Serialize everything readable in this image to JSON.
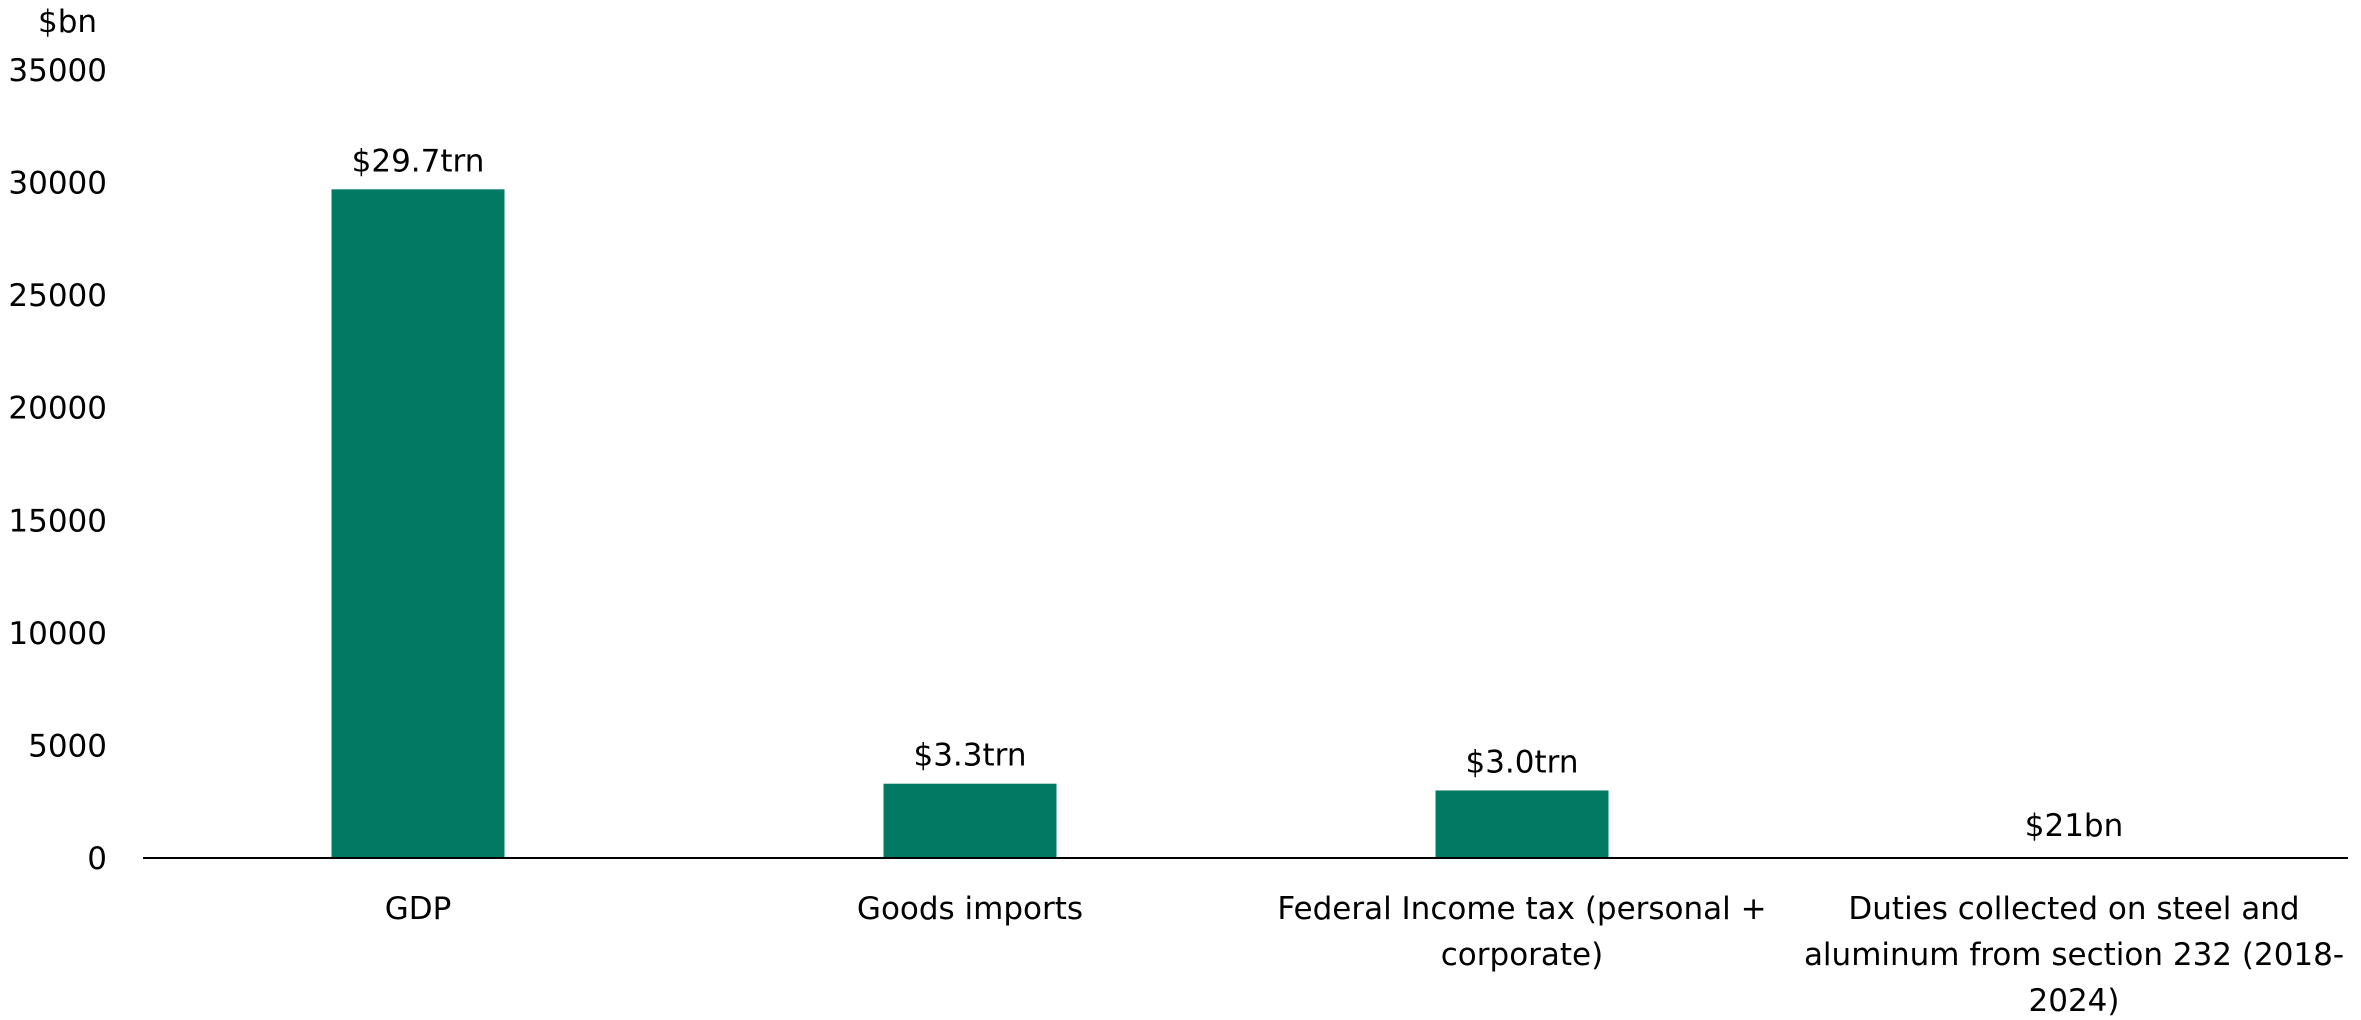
{
  "chart_data": {
    "type": "bar",
    "unit_label": "$bn",
    "categories": [
      "GDP",
      "Goods imports",
      "Federal Income tax (personal + corporate)",
      "Duties collected on steel and aluminum from section 232 (2018-2024)"
    ],
    "category_label_lines": [
      [
        "GDP"
      ],
      [
        "Goods imports"
      ],
      [
        "Federal Income tax (personal +",
        "corporate)"
      ],
      [
        "Duties collected on steel and",
        "aluminum from section 232 (2018-",
        "2024)"
      ]
    ],
    "values": [
      29700,
      3300,
      3000,
      21
    ],
    "data_labels": [
      "$29.7trn",
      "$3.3trn",
      "$3.0trn",
      "$21bn"
    ],
    "ylim": [
      0,
      35000
    ],
    "yticks": [
      0,
      5000,
      10000,
      15000,
      20000,
      25000,
      30000,
      35000
    ],
    "grid": false,
    "legend": "none",
    "bar_color": "#007A63"
  }
}
